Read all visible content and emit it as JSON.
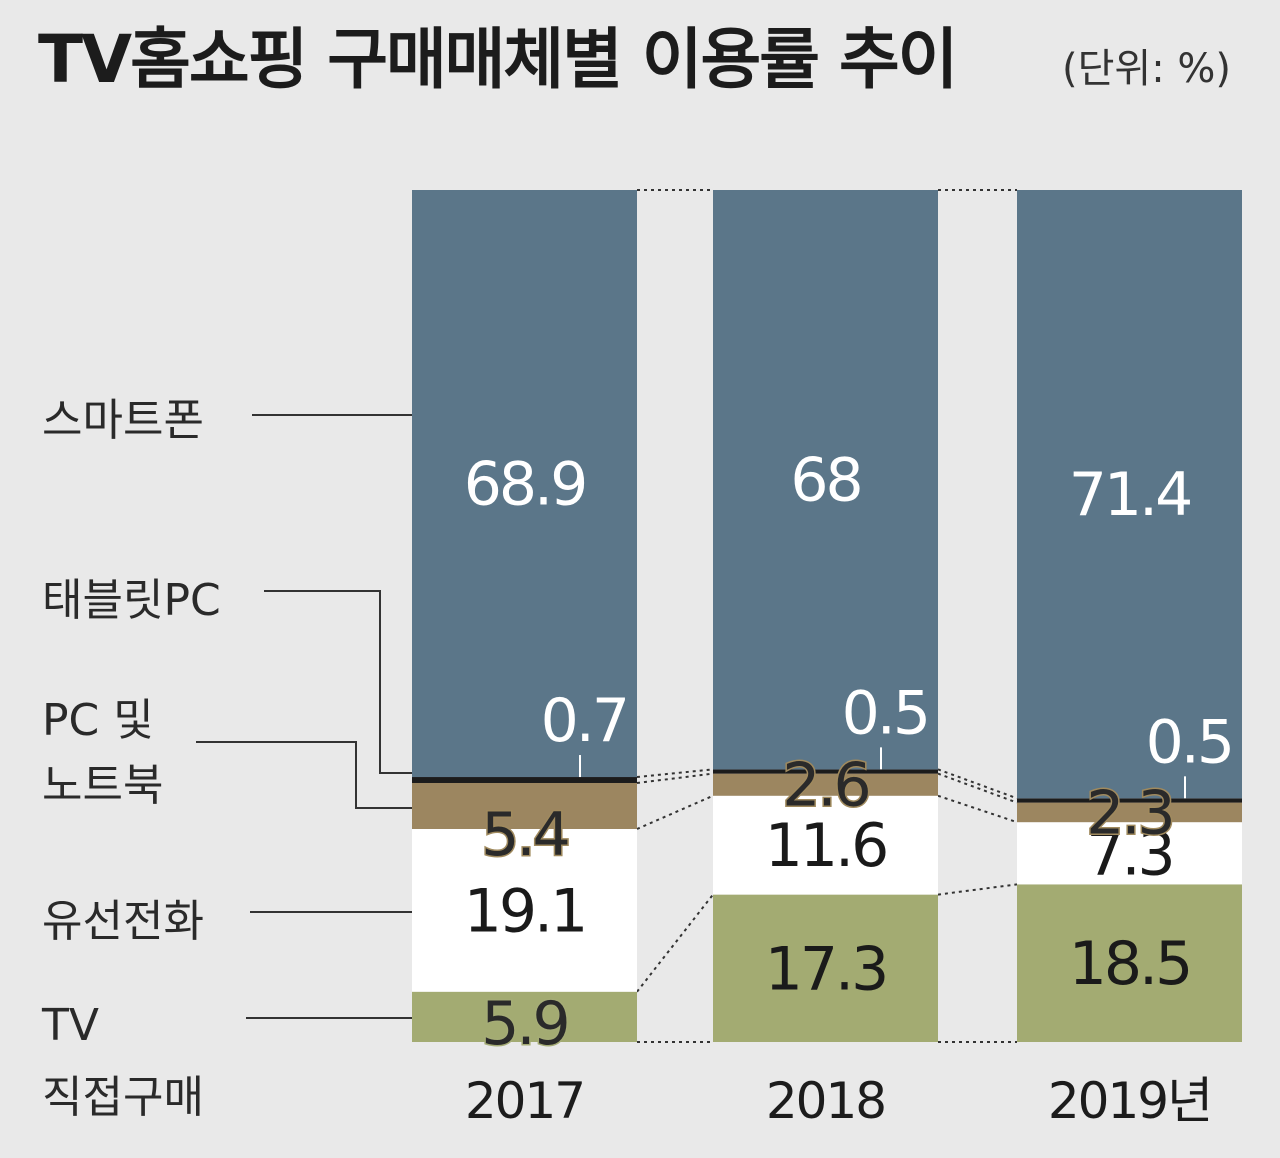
{
  "title": "TV홈쇼핑 구매매체별 이용률 추이",
  "unit": "(단위: %)",
  "colors": {
    "smartphone": "#5b7689",
    "tablet": "#1c1c1c",
    "pc": "#9c8660",
    "landline": "#ffffff",
    "tv": "#a3ab72",
    "background": "#e9e9e9"
  },
  "chart_data": {
    "type": "bar",
    "stacked": true,
    "title": "TV홈쇼핑 구매매체별 이용률 추이",
    "unit": "(단위: %)",
    "categories": [
      "2017",
      "2018",
      "2019년"
    ],
    "series": [
      {
        "name": "TV 직접구매",
        "label_lines": [
          "TV",
          "직접구매"
        ],
        "values": [
          5.9,
          17.3,
          18.5
        ],
        "value_labels": [
          "5.9",
          "17.3",
          "18.5"
        ]
      },
      {
        "name": "유선전화",
        "label_lines": [
          "유선전화"
        ],
        "values": [
          19.1,
          11.6,
          7.3
        ],
        "value_labels": [
          "19.1",
          "11.6",
          "7.3"
        ]
      },
      {
        "name": "PC 및 노트북",
        "label_lines": [
          "PC 및",
          "노트북"
        ],
        "values": [
          5.4,
          2.6,
          2.3
        ],
        "value_labels": [
          "5.4",
          "2.6",
          "2.3"
        ]
      },
      {
        "name": "태블릿PC",
        "label_lines": [
          "태블릿PC"
        ],
        "values": [
          0.7,
          0.5,
          0.5
        ],
        "value_labels": [
          "0.7",
          "0.5",
          "0.5"
        ]
      },
      {
        "name": "스마트폰",
        "label_lines": [
          "스마트폰"
        ],
        "values": [
          68.9,
          68,
          71.4
        ],
        "value_labels": [
          "68.9",
          "68",
          "71.4"
        ]
      }
    ],
    "ylim": [
      0,
      100
    ],
    "xlabel": "",
    "ylabel": "",
    "grid": false,
    "legend": "left"
  }
}
